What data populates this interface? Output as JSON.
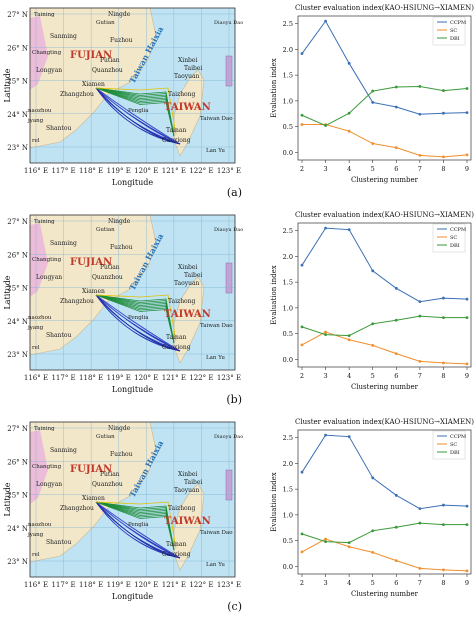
{
  "map_common": {
    "lat_labels": [
      "27° N",
      "26° N",
      "25° N",
      "24° N",
      "23° N"
    ],
    "lon_labels": [
      "116° E",
      "117° E",
      "118° E",
      "119° E",
      "120° E",
      "121° E",
      "122° E",
      "123° E"
    ],
    "ylabel": "Latitude",
    "xlabel": "Longitude",
    "places": {
      "taining": "Taining",
      "ningde": "Ningde",
      "gutian": "Gutian",
      "sanming": "Sanming",
      "fuzhou": "Fuzhou",
      "changting": "Changting",
      "fujian": "FUJIAN",
      "putian": "Putian",
      "longyan": "Longyan",
      "quanzhou": "Quanzhou",
      "xiamen": "Xiamen",
      "zhangzhou": "Zhangzhou",
      "xinbei": "Xinbei",
      "taipei": "Taibei",
      "taoyuan": "Taoyuan",
      "taizhong": "Taizhong",
      "taiwan": "TAIWAN",
      "taiwan_dao": "Taiwan Dao",
      "penglia": "Penglia",
      "tainan": "Tainan",
      "gaoxiong": "Gaoxiong",
      "shantou": "Shantou",
      "raozhou": "naozhou",
      "jieyang": "jyang",
      "tw_haixia": "Taiwan Haixia",
      "lan_yu": "Lan Yu",
      "diaoyu": "Diaoyu Dao",
      "rel": "rel"
    }
  },
  "panels": [
    {
      "label": "(a)",
      "chart_data": {
        "type": "line",
        "title": "Cluster evaluation index(KAO-HSIUNG→XIAMEN)",
        "xlabel": "Clustering number",
        "ylabel": "Evaluation index",
        "x": [
          2,
          3,
          4,
          5,
          6,
          7,
          8,
          9
        ],
        "xlim": [
          2,
          9
        ],
        "ylim": [
          -0.15,
          2.65
        ],
        "yticks": [
          0.0,
          0.5,
          1.0,
          1.5,
          2.0,
          2.5
        ],
        "legend": "top-right",
        "series": [
          {
            "name": "CCPM",
            "color": "#3b6fb6",
            "values": [
              1.92,
              2.55,
              1.73,
              0.97,
              0.88,
              0.74,
              0.76,
              0.77
            ]
          },
          {
            "name": "SC",
            "color": "#f28e2b",
            "values": [
              0.54,
              0.54,
              0.41,
              0.17,
              0.09,
              -0.06,
              -0.09,
              -0.05
            ]
          },
          {
            "name": "DBI",
            "color": "#3a9a3a",
            "values": [
              0.72,
              0.52,
              0.76,
              1.19,
              1.27,
              1.28,
              1.2,
              1.24
            ]
          }
        ]
      }
    },
    {
      "label": "(b)",
      "chart_data": {
        "type": "line",
        "title": "Cluster evaluation index(KAO-HSIUNG→XIAMEN)",
        "xlabel": "Clustering number",
        "ylabel": "Evaluation index",
        "x": [
          2,
          3,
          4,
          5,
          6,
          7,
          8,
          9
        ],
        "xlim": [
          2,
          9
        ],
        "ylim": [
          -0.15,
          2.65
        ],
        "yticks": [
          0.0,
          0.5,
          1.0,
          1.5,
          2.0,
          2.5
        ],
        "legend": "top-right",
        "series": [
          {
            "name": "CCPM",
            "color": "#3b6fb6",
            "values": [
              1.83,
              2.55,
              2.52,
              1.72,
              1.38,
              1.12,
              1.19,
              1.17
            ]
          },
          {
            "name": "SC",
            "color": "#f28e2b",
            "values": [
              0.28,
              0.53,
              0.38,
              0.27,
              0.11,
              -0.04,
              -0.07,
              -0.09
            ]
          },
          {
            "name": "DBI",
            "color": "#3a9a3a",
            "values": [
              0.63,
              0.48,
              0.46,
              0.69,
              0.76,
              0.84,
              0.81,
              0.81
            ]
          }
        ]
      }
    },
    {
      "label": "(c)",
      "chart_data": {
        "type": "line",
        "title": "Cluster evaluation index(KAO-HSIUNG→XIAMEN)",
        "xlabel": "Clustering number",
        "ylabel": "Evaluation index",
        "x": [
          2,
          3,
          4,
          5,
          6,
          7,
          8,
          9
        ],
        "xlim": [
          2,
          9
        ],
        "ylim": [
          -0.15,
          2.65
        ],
        "yticks": [
          0.0,
          0.5,
          1.0,
          1.5,
          2.0,
          2.5
        ],
        "legend": "top-right",
        "series": [
          {
            "name": "CCPM",
            "color": "#3b6fb6",
            "values": [
              1.83,
              2.55,
              2.52,
              1.72,
              1.38,
              1.12,
              1.19,
              1.17
            ]
          },
          {
            "name": "SC",
            "color": "#f28e2b",
            "values": [
              0.28,
              0.53,
              0.38,
              0.27,
              0.11,
              -0.04,
              -0.07,
              -0.09
            ]
          },
          {
            "name": "DBI",
            "color": "#3a9a3a",
            "values": [
              0.63,
              0.48,
              0.46,
              0.69,
              0.76,
              0.84,
              0.81,
              0.81
            ]
          }
        ]
      }
    }
  ]
}
